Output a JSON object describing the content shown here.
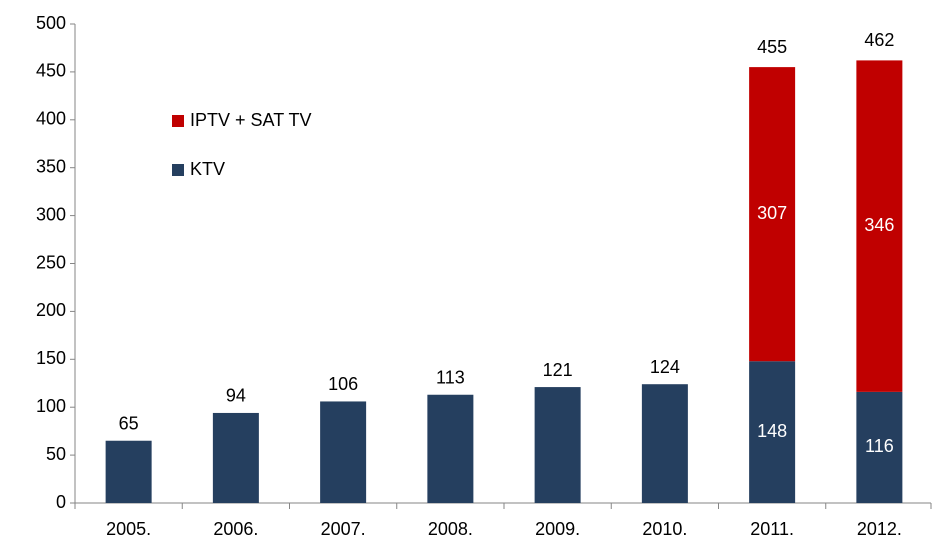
{
  "chart_data": {
    "type": "stacked_bar",
    "categories": [
      "2005.",
      "2006.",
      "2007.",
      "2008.",
      "2009.",
      "2010.",
      "2011.",
      "2012."
    ],
    "series": [
      {
        "name": "KTV",
        "color": "#253f5f",
        "values": [
          65,
          94,
          106,
          113,
          121,
          124,
          148,
          116
        ]
      },
      {
        "name": "IPTV + SAT TV",
        "color": "#c00000",
        "values": [
          null,
          null,
          null,
          null,
          null,
          null,
          307,
          346
        ]
      }
    ],
    "totals": [
      null,
      null,
      null,
      null,
      null,
      null,
      455,
      462
    ],
    "ylim": [
      0,
      500
    ],
    "yticks": [
      0,
      50,
      100,
      150,
      200,
      250,
      300,
      350,
      400,
      450,
      500
    ]
  }
}
